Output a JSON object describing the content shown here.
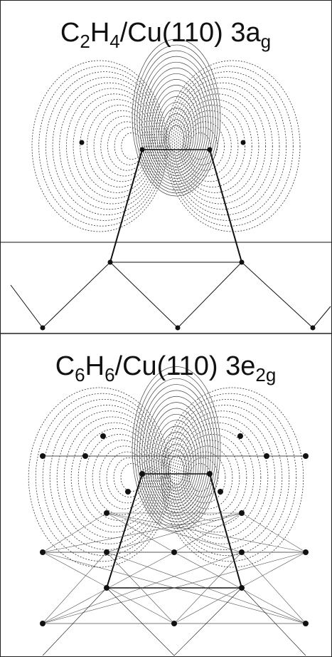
{
  "panels": [
    {
      "title": [
        {
          "text": "C"
        },
        {
          "sub": "2"
        },
        {
          "text": "H"
        },
        {
          "sub": "4"
        },
        {
          "text": "/Cu(110) 3a"
        },
        {
          "sub": "g"
        }
      ]
    },
    {
      "title": [
        {
          "text": "C"
        },
        {
          "sub": "6"
        },
        {
          "text": "H"
        },
        {
          "sub": "6"
        },
        {
          "text": "/Cu(110) 3e"
        },
        {
          "sub": "2g"
        }
      ]
    }
  ]
}
